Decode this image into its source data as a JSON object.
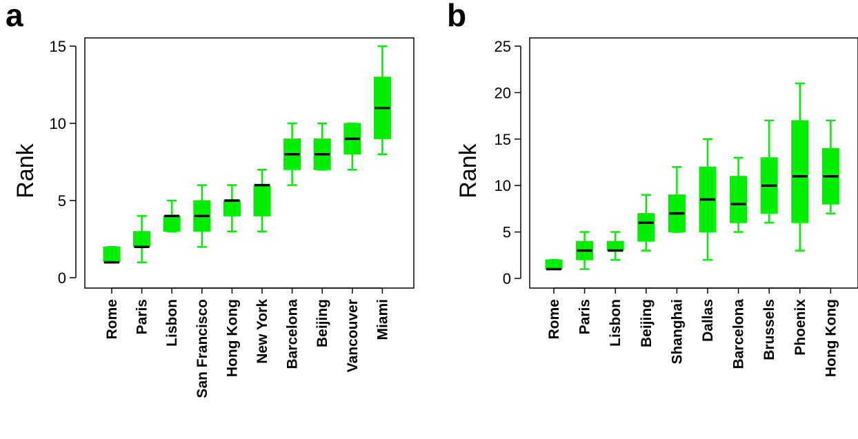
{
  "chart_data": [
    {
      "type": "box",
      "panel": "a",
      "ylabel": "Rank",
      "ylim": [
        0,
        15
      ],
      "yticks": [
        0,
        5,
        10,
        15
      ],
      "categories": [
        "Rome",
        "Paris",
        "Lisbon",
        "San Francisco",
        "Hong Kong",
        "New York",
        "Barcelona",
        "Beijing",
        "Vancouver",
        "Miami"
      ],
      "boxes": [
        {
          "min": 1,
          "q1": 1,
          "median": 1,
          "q3": 2,
          "max": 2
        },
        {
          "min": 1,
          "q1": 2,
          "median": 2,
          "q3": 3,
          "max": 4
        },
        {
          "min": 3,
          "q1": 3,
          "median": 4,
          "q3": 4,
          "max": 5
        },
        {
          "min": 2,
          "q1": 3,
          "median": 4,
          "q3": 5,
          "max": 6
        },
        {
          "min": 3,
          "q1": 4,
          "median": 5,
          "q3": 5,
          "max": 6
        },
        {
          "min": 3,
          "q1": 4,
          "median": 6,
          "q3": 6,
          "max": 7
        },
        {
          "min": 6,
          "q1": 7,
          "median": 8,
          "q3": 9,
          "max": 10
        },
        {
          "min": 7,
          "q1": 7,
          "median": 8,
          "q3": 9,
          "max": 10
        },
        {
          "min": 7,
          "q1": 8,
          "median": 9,
          "q3": 10,
          "max": 10
        },
        {
          "min": 8,
          "q1": 9,
          "median": 11,
          "q3": 13,
          "max": 15
        }
      ],
      "color": "#00ee00",
      "median_color": "#000000"
    },
    {
      "type": "box",
      "panel": "b",
      "ylabel": "Rank",
      "ylim": [
        0,
        25
      ],
      "yticks": [
        0,
        5,
        10,
        15,
        20,
        25
      ],
      "categories": [
        "Rome",
        "Paris",
        "Lisbon",
        "Beijing",
        "Shanghai",
        "Dallas",
        "Barcelona",
        "Brussels",
        "Phoenix",
        "Hong Kong"
      ],
      "boxes": [
        {
          "min": 1,
          "q1": 1,
          "median": 1,
          "q3": 2,
          "max": 2
        },
        {
          "min": 1,
          "q1": 2,
          "median": 3,
          "q3": 4,
          "max": 5
        },
        {
          "min": 2,
          "q1": 3,
          "median": 3,
          "q3": 4,
          "max": 5
        },
        {
          "min": 3,
          "q1": 4,
          "median": 6,
          "q3": 7,
          "max": 9
        },
        {
          "min": 5,
          "q1": 5,
          "median": 7,
          "q3": 9,
          "max": 12
        },
        {
          "min": 2,
          "q1": 5,
          "median": 8.5,
          "q3": 12,
          "max": 15
        },
        {
          "min": 5,
          "q1": 6,
          "median": 8,
          "q3": 11,
          "max": 13
        },
        {
          "min": 6,
          "q1": 7,
          "median": 10,
          "q3": 13,
          "max": 17
        },
        {
          "min": 3,
          "q1": 6,
          "median": 11,
          "q3": 17,
          "max": 21
        },
        {
          "min": 7,
          "q1": 8,
          "median": 11,
          "q3": 14,
          "max": 17
        }
      ],
      "color": "#00ee00",
      "median_color": "#000000"
    }
  ]
}
